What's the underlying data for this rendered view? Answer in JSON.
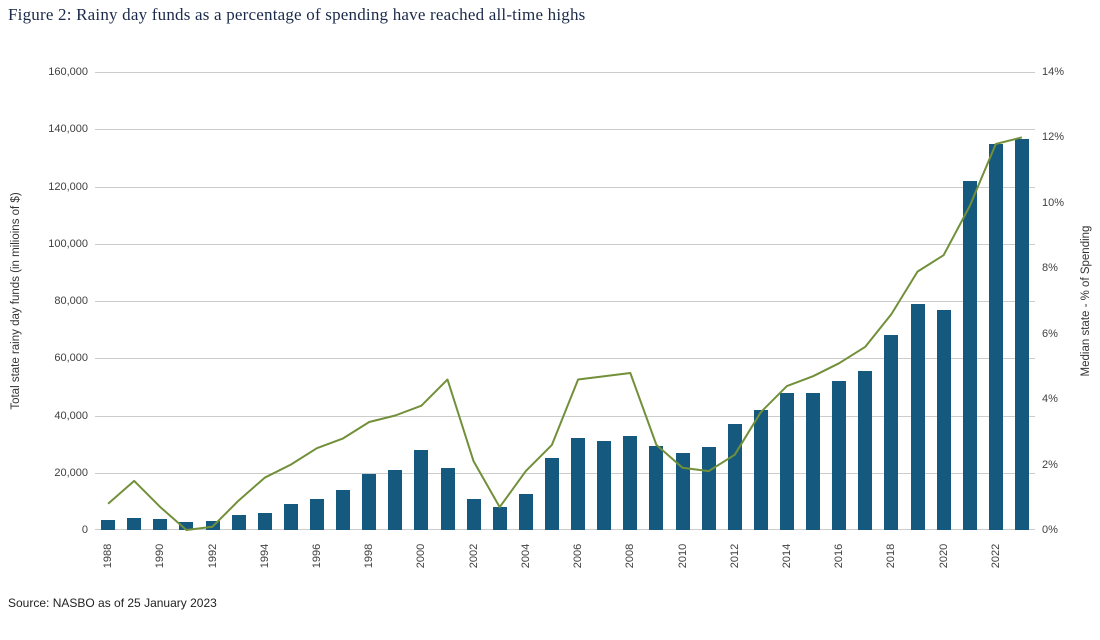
{
  "title": "Figure 2: Rainy day funds as a percentage of spending have reached all-time highs",
  "source": "Source: NASBO as of 25 January 2023",
  "colors": {
    "bar": "#15597e",
    "line": "#72903a",
    "grid": "#cccccc",
    "axis_text": "#404040",
    "title_text": "#1b2a4a"
  },
  "chart_data": {
    "type": "bar",
    "subtype": "bar-and-line-combo",
    "grid": true,
    "legend_position": "none",
    "categories": [
      "1988",
      "1989",
      "1990",
      "1991",
      "1992",
      "1993",
      "1994",
      "1995",
      "1996",
      "1997",
      "1998",
      "1999",
      "2000",
      "2001",
      "2002",
      "2003",
      "2004",
      "2005",
      "2006",
      "2007",
      "2008",
      "2009",
      "2010",
      "2011",
      "2012",
      "2013",
      "2014",
      "2015",
      "2016",
      "2017",
      "2018",
      "2019",
      "2020",
      "2021",
      "2022",
      "2023"
    ],
    "series": [
      {
        "name": "Total state rainy day funds (in milioins of $)",
        "type": "bar",
        "axis": "left",
        "values": [
          3500,
          4200,
          3800,
          2800,
          3000,
          5200,
          5800,
          9000,
          11000,
          14000,
          19500,
          21000,
          28000,
          21500,
          11000,
          8000,
          12500,
          25000,
          32000,
          31000,
          33000,
          29500,
          27000,
          29000,
          37000,
          42000,
          48000,
          48000,
          52000,
          55500,
          68000,
          79000,
          77000,
          122000,
          135000,
          136500
        ]
      },
      {
        "name": "Median state  - % of Spending",
        "type": "line",
        "axis": "right",
        "values": [
          0.8,
          1.5,
          0.7,
          0.0,
          0.1,
          0.9,
          1.6,
          2.0,
          2.5,
          2.8,
          3.3,
          3.5,
          3.8,
          4.6,
          2.1,
          0.7,
          1.8,
          2.6,
          4.6,
          4.7,
          4.8,
          2.6,
          1.9,
          1.8,
          2.3,
          3.6,
          4.4,
          4.7,
          5.1,
          5.6,
          6.6,
          7.9,
          8.4,
          9.9,
          11.8,
          12.0
        ]
      }
    ],
    "left_axis": {
      "title": "Total state rainy day funds (in milioins of $)",
      "min": 0,
      "max": 160000,
      "tick_labels": [
        "0",
        "20,000",
        "40,000",
        "60,000",
        "80,000",
        "100,000",
        "120,000",
        "140,000",
        "160,000"
      ]
    },
    "right_axis": {
      "title": "Median state  - % of Spending",
      "min": 0,
      "max": 14,
      "tick_labels": [
        "0%",
        "2%",
        "4%",
        "6%",
        "8%",
        "10%",
        "12%",
        "14%"
      ]
    },
    "x_tick_labels": [
      "1988",
      "1990",
      "1992",
      "1994",
      "1996",
      "1998",
      "2000",
      "2002",
      "2004",
      "2006",
      "2008",
      "2010",
      "2012",
      "2014",
      "2016",
      "2018",
      "2020",
      "2022"
    ]
  }
}
